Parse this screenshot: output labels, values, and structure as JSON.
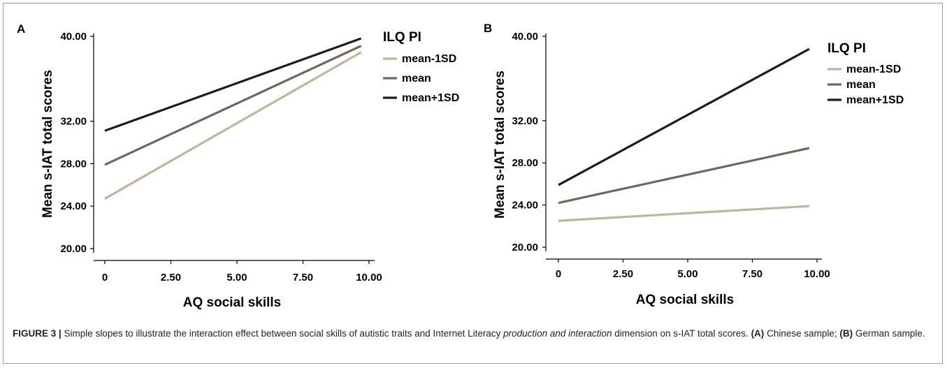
{
  "caption": {
    "label": "FIGURE 3 |",
    "text1": " Simple slopes to illustrate the interaction effect between social skills of autistic traits and Internet Literacy ",
    "italic": "production and interaction",
    "text2": " dimension on s-IAT total scores. ",
    "bold_a": "(A)",
    "text3": " Chinese sample; ",
    "bold_b": "(B)",
    "text4": " German sample."
  },
  "colors": {
    "mean-1SD": "#c2b39a",
    "mean": "#6f675b",
    "mean+1SD": "#1c1c1c"
  },
  "chart_data": [
    {
      "type": "line",
      "panel_label": "A",
      "xlabel": "AQ social skills",
      "ylabel": "Mean s-IAT total scores",
      "xlim": [
        0,
        10
      ],
      "ylim": [
        20,
        40
      ],
      "xticks": [
        0,
        2.5,
        5,
        7.5,
        10
      ],
      "xtick_labels": [
        "0",
        "2.50",
        "5.00",
        "7.50",
        "10.00"
      ],
      "yticks": [
        20,
        24,
        28,
        32,
        40
      ],
      "ytick_labels": [
        "20.00",
        "24.00",
        "28.00",
        "32.00",
        "40.00"
      ],
      "legend": {
        "title": "ILQ PI",
        "position": "right"
      },
      "series": [
        {
          "name": "mean-1SD",
          "x": [
            0,
            9.7
          ],
          "y": [
            24.7,
            38.5
          ]
        },
        {
          "name": "mean",
          "x": [
            0,
            9.7
          ],
          "y": [
            27.9,
            39.1
          ]
        },
        {
          "name": "mean+1SD",
          "x": [
            0,
            9.7
          ],
          "y": [
            31.1,
            39.8
          ]
        }
      ]
    },
    {
      "type": "line",
      "panel_label": "B",
      "xlabel": "AQ social skills",
      "ylabel": "Mean s-IAT total scores",
      "xlim": [
        0,
        10
      ],
      "ylim": [
        20,
        40
      ],
      "xticks": [
        0,
        2.5,
        5,
        7.5,
        10
      ],
      "xtick_labels": [
        "0",
        "2.50",
        "5.00",
        "7.50",
        "10.00"
      ],
      "yticks": [
        20,
        24,
        28,
        32,
        40
      ],
      "ytick_labels": [
        "20.00",
        "24.00",
        "28.00",
        "32.00",
        "40.00"
      ],
      "legend": {
        "title": "ILQ PI",
        "position": "right"
      },
      "series": [
        {
          "name": "mean-1SD",
          "x": [
            0,
            9.7
          ],
          "y": [
            22.5,
            23.9
          ]
        },
        {
          "name": "mean",
          "x": [
            0,
            9.7
          ],
          "y": [
            24.2,
            29.4
          ]
        },
        {
          "name": "mean+1SD",
          "x": [
            0,
            9.7
          ],
          "y": [
            25.9,
            38.8
          ]
        }
      ]
    }
  ]
}
